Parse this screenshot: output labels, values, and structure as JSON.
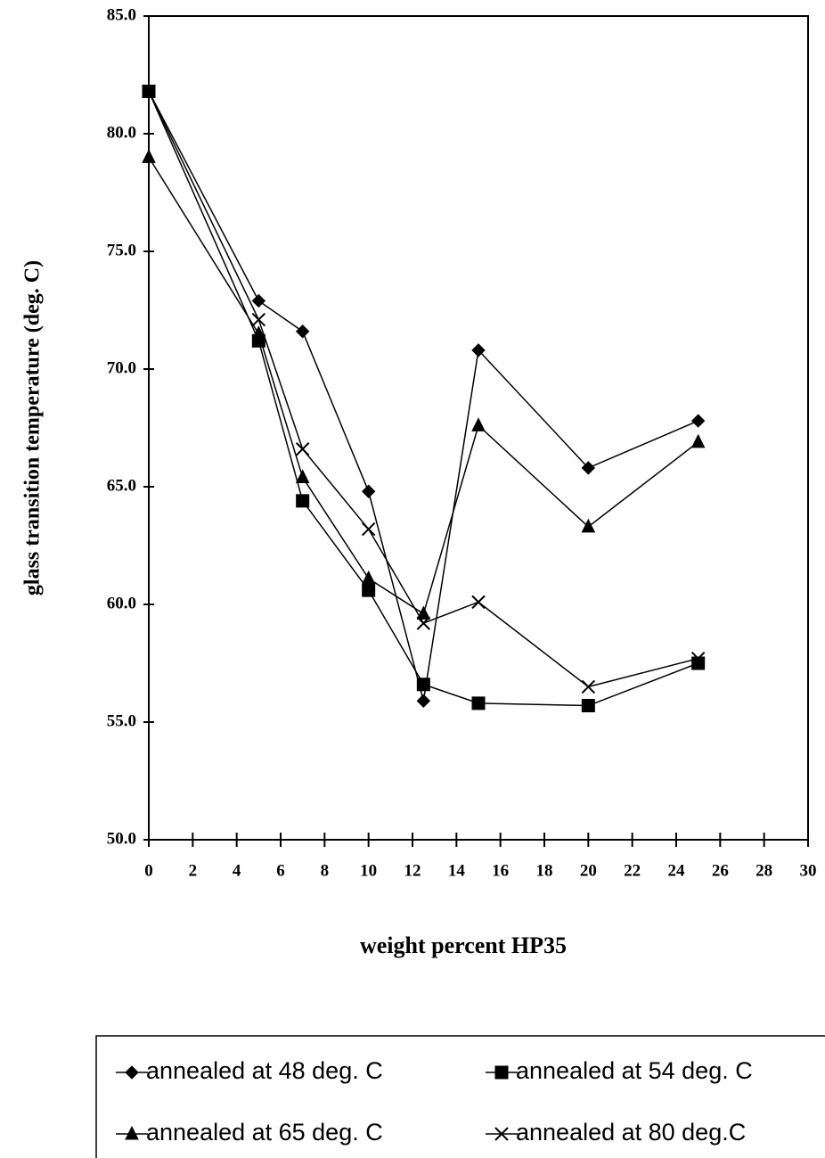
{
  "chart_data": {
    "type": "line",
    "y_label": "glass transition temperature (deg. C)",
    "x_label": "weight percent HP35",
    "x": [
      0,
      5,
      7,
      10,
      12.5,
      15,
      20,
      25
    ],
    "xlim": [
      0,
      30
    ],
    "xticks": [
      0,
      2,
      4,
      6,
      8,
      10,
      12,
      14,
      16,
      18,
      20,
      22,
      24,
      26,
      28,
      30
    ],
    "ylim": [
      50,
      85
    ],
    "yticks": [
      {
        "value": 50,
        "label": "50.0"
      },
      {
        "value": 55,
        "label": "55.0"
      },
      {
        "value": 60,
        "label": "60.0"
      },
      {
        "value": 65,
        "label": "65.0"
      },
      {
        "value": 70,
        "label": "70.0"
      },
      {
        "value": 75,
        "label": "75.0"
      },
      {
        "value": 80,
        "label": "80.0"
      },
      {
        "value": 85,
        "label": "85.0"
      }
    ],
    "series": [
      {
        "name": "annealed at 48 deg. C",
        "marker": "diamond",
        "color": "#000000",
        "values": [
          81.8,
          72.9,
          71.6,
          64.8,
          55.9,
          70.8,
          65.8,
          67.8
        ]
      },
      {
        "name": "annealed at 54 deg. C",
        "marker": "square",
        "color": "#000000",
        "values": [
          81.8,
          71.2,
          64.4,
          60.6,
          56.6,
          55.8,
          55.7,
          57.5
        ]
      },
      {
        "name": "annealed at 65 deg. C",
        "marker": "triangle",
        "color": "#000000",
        "values": [
          79.0,
          71.5,
          65.4,
          61.1,
          59.6,
          67.6,
          63.3,
          66.9
        ]
      },
      {
        "name": "annealed at 80 deg.C",
        "marker": "x",
        "color": "#000000",
        "values": [
          81.8,
          72.1,
          66.6,
          63.2,
          59.2,
          60.1,
          56.5,
          57.7
        ]
      }
    ]
  }
}
